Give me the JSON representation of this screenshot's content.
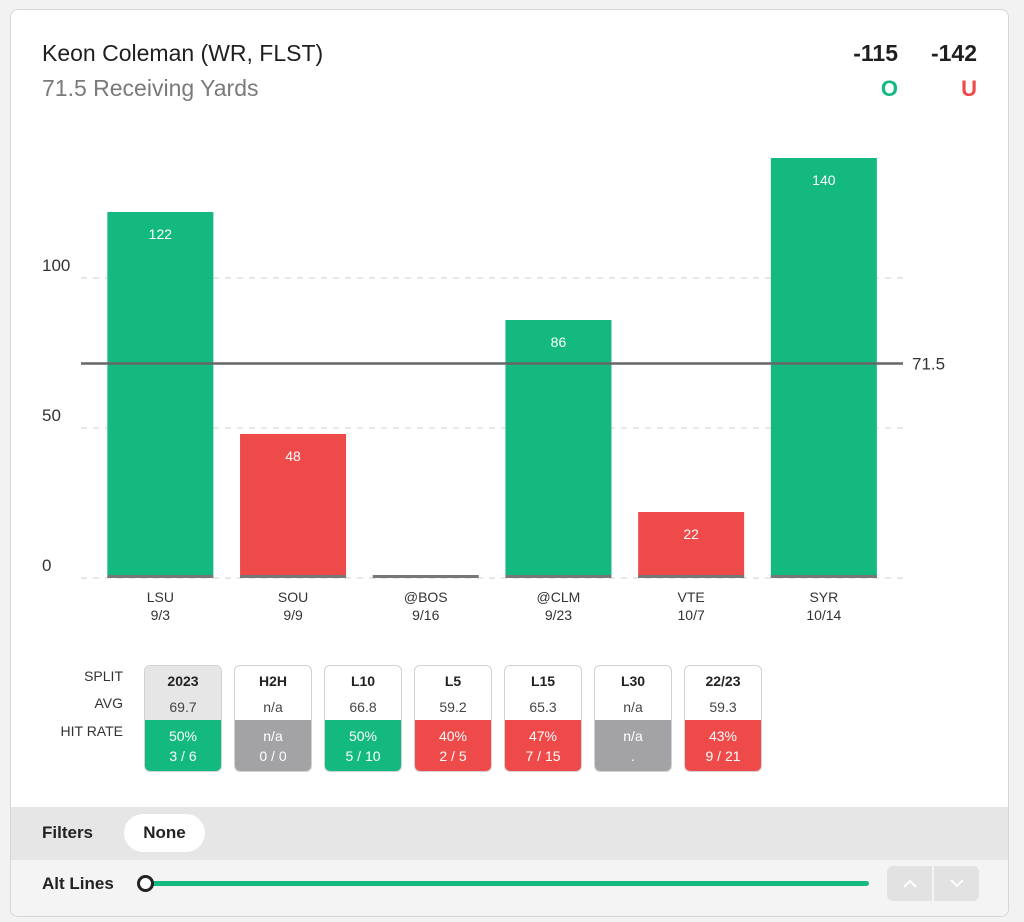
{
  "header": {
    "player": "Keon Coleman (WR, FLST)",
    "prop": "71.5 Receiving Yards",
    "over_odds": "-115",
    "under_odds": "-142",
    "over_letter": "O",
    "under_letter": "U"
  },
  "colors": {
    "over": "#13b97e",
    "under": "#ee4a4a",
    "neutral": "#a3a3a6",
    "line": "#666666"
  },
  "chart_data": {
    "type": "bar",
    "categories": [
      "LSU",
      "SOU",
      "@BOS",
      "@CLM",
      "VTE",
      "SYR"
    ],
    "dates": [
      "9/3",
      "9/9",
      "9/16",
      "9/23",
      "10/7",
      "10/14"
    ],
    "values": [
      122,
      48,
      0,
      86,
      22,
      140
    ],
    "value_labels": [
      "122",
      "48",
      "",
      "86",
      "22",
      "140"
    ],
    "line": 71.5,
    "line_label": "71.5",
    "yticks": [
      0,
      50,
      100
    ],
    "ylim": [
      0,
      140
    ],
    "grid": true,
    "title": "",
    "xlabel": "",
    "ylabel": ""
  },
  "splits": {
    "row_labels": [
      "SPLIT",
      "AVG",
      "HIT RATE"
    ],
    "tiles": [
      {
        "name": "2023",
        "avg": "69.7",
        "pct": "50%",
        "frac": "3 / 6",
        "status": "green",
        "active": true
      },
      {
        "name": "H2H",
        "avg": "n/a",
        "pct": "n/a",
        "frac": "0 / 0",
        "status": "gray",
        "active": false
      },
      {
        "name": "L10",
        "avg": "66.8",
        "pct": "50%",
        "frac": "5 / 10",
        "status": "green",
        "active": false
      },
      {
        "name": "L5",
        "avg": "59.2",
        "pct": "40%",
        "frac": "2 / 5",
        "status": "red",
        "active": false
      },
      {
        "name": "L15",
        "avg": "65.3",
        "pct": "47%",
        "frac": "7 / 15",
        "status": "red",
        "active": false
      },
      {
        "name": "L30",
        "avg": "n/a",
        "pct": "n/a",
        "frac": ".",
        "status": "gray",
        "active": false
      },
      {
        "name": "22/23",
        "avg": "59.3",
        "pct": "43%",
        "frac": "9 / 21",
        "status": "red",
        "active": false
      }
    ]
  },
  "filters": {
    "label": "Filters",
    "value": "None"
  },
  "alt_lines": {
    "label": "Alt Lines",
    "slider_position": 0,
    "up_icon": "chevron-up-icon",
    "down_icon": "chevron-down-icon"
  }
}
